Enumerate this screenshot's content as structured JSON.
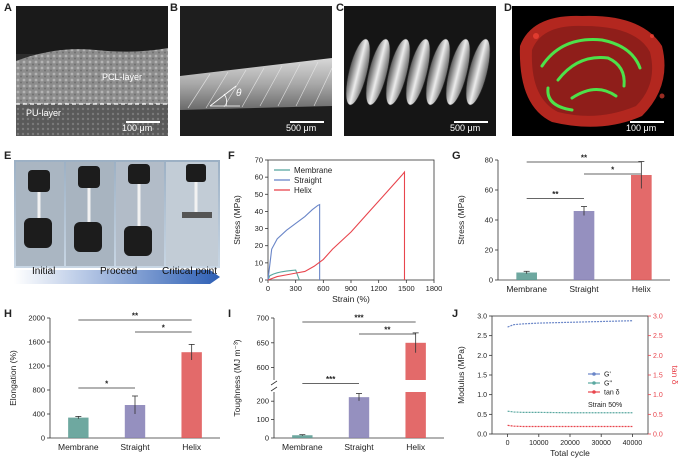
{
  "panels": {
    "A": {
      "label": "A",
      "layer_top": "PCL-layer",
      "layer_bottom": "PU-layer",
      "scale": "100 μm"
    },
    "B": {
      "label": "B",
      "angle": "θ",
      "scale": "500 μm"
    },
    "C": {
      "label": "C",
      "scale": "500 μm"
    },
    "D": {
      "label": "D",
      "scale": "100 μm"
    },
    "E": {
      "label": "E",
      "stages": [
        "Initial",
        "Proceed",
        "Critical point"
      ]
    },
    "F": {
      "label": "F"
    },
    "G": {
      "label": "G"
    },
    "H": {
      "label": "H"
    },
    "I": {
      "label": "I"
    },
    "J": {
      "label": "J"
    }
  },
  "colors": {
    "membrane": "#5e9e96",
    "straight": "#8a84b8",
    "helix": "#e05a5a",
    "line_red": "#e8454d",
    "line_blue": "#6a86c8",
    "line_teal": "#5aa8a0"
  },
  "chart_data": [
    {
      "id": "F",
      "type": "line",
      "xlabel": "Strain (%)",
      "ylabel": "Stress (MPa)",
      "xlim": [
        0,
        1800
      ],
      "ylim": [
        0,
        70
      ],
      "xticks": [
        "0",
        "300",
        "600",
        "900",
        "1200",
        "1500",
        "1800"
      ],
      "yticks": [
        "0",
        "10",
        "20",
        "30",
        "40",
        "50",
        "60",
        "70"
      ],
      "legend": [
        "Membrane",
        "Straight",
        "Helix"
      ],
      "series": [
        {
          "name": "Membrane",
          "x": [
            0,
            20,
            60,
            100,
            150,
            200,
            260,
            300,
            340
          ],
          "y": [
            0,
            2.5,
            3.5,
            4.2,
            4.8,
            5.2,
            5.6,
            5.8,
            0
          ]
        },
        {
          "name": "Straight",
          "x": [
            0,
            40,
            100,
            200,
            300,
            400,
            480,
            540,
            560,
            560
          ],
          "y": [
            0,
            18,
            24,
            29,
            33,
            37,
            41,
            43.5,
            44,
            0
          ]
        },
        {
          "name": "Helix",
          "x": [
            0,
            100,
            200,
            300,
            400,
            500,
            600,
            700,
            900,
            1100,
            1300,
            1450,
            1480,
            1480
          ],
          "y": [
            0,
            2,
            3,
            4,
            5,
            8,
            12,
            18,
            28,
            40,
            52,
            61,
            63,
            0
          ]
        }
      ]
    },
    {
      "id": "G",
      "type": "bar",
      "ylabel": "Stress (MPa)",
      "ylim": [
        0,
        80
      ],
      "yticks": [
        "0",
        "20",
        "40",
        "60",
        "80"
      ],
      "categories": [
        "Membrane",
        "Straight",
        "Helix"
      ],
      "values": [
        5,
        46,
        70
      ],
      "errors": [
        0.8,
        3,
        9
      ],
      "significance": [
        "**",
        "*",
        "**"
      ]
    },
    {
      "id": "H",
      "type": "bar",
      "ylabel": "Elongation (%)",
      "ylim": [
        0,
        2000
      ],
      "yticks": [
        "0",
        "400",
        "800",
        "1200",
        "1600",
        "2000"
      ],
      "categories": [
        "Membrane",
        "Straight",
        "Helix"
      ],
      "values": [
        340,
        550,
        1430
      ],
      "errors": [
        20,
        150,
        130
      ],
      "significance": [
        "*",
        "*",
        "**"
      ]
    },
    {
      "id": "I",
      "type": "bar",
      "ylabel": "Toughness (MJ m⁻³)",
      "yticks_lower": [
        "0",
        "100",
        "200"
      ],
      "yticks_upper": [
        "600",
        "650",
        "700"
      ],
      "categories": [
        "Membrane",
        "Straight",
        "Helix"
      ],
      "values": [
        15,
        222,
        650
      ],
      "errors": [
        3,
        20,
        20
      ],
      "significance": [
        "***",
        "**",
        "***"
      ]
    },
    {
      "id": "J",
      "type": "line",
      "xlabel": "Total cycle",
      "ylabel": "Modulus (MPa)",
      "y2label": "tan δ",
      "xlim": [
        -5000,
        45000
      ],
      "ylim": [
        0,
        3.0
      ],
      "y2lim": [
        0,
        3.0
      ],
      "xticks": [
        "0",
        "10000",
        "20000",
        "30000",
        "40000"
      ],
      "yticks": [
        "0.0",
        "0.5",
        "1.0",
        "1.5",
        "2.0",
        "2.5",
        "3.0"
      ],
      "y2ticks": [
        "0.0",
        "0.5",
        "1.0",
        "1.5",
        "2.0",
        "2.5",
        "3.0"
      ],
      "legend": [
        "G'",
        "G\"",
        "tan δ"
      ],
      "annotation": "Strain 50%",
      "series": [
        {
          "name": "G'",
          "x": [
            0,
            2000,
            5000,
            10000,
            20000,
            30000,
            40000
          ],
          "y": [
            2.72,
            2.78,
            2.8,
            2.82,
            2.84,
            2.86,
            2.88
          ]
        },
        {
          "name": "G\"",
          "x": [
            0,
            2000,
            5000,
            10000,
            20000,
            30000,
            40000
          ],
          "y": [
            0.58,
            0.56,
            0.55,
            0.55,
            0.54,
            0.54,
            0.54
          ]
        },
        {
          "name": "tan δ",
          "x": [
            0,
            2000,
            5000,
            10000,
            20000,
            30000,
            40000
          ],
          "y": [
            0.22,
            0.2,
            0.19,
            0.19,
            0.19,
            0.19,
            0.19
          ]
        }
      ]
    }
  ]
}
